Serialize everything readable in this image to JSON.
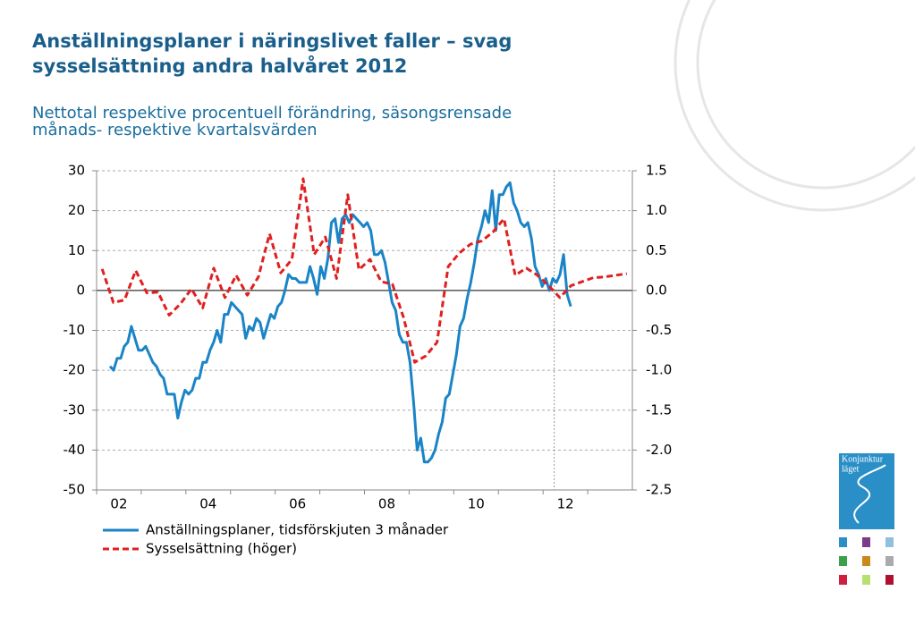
{
  "chart_data": {
    "type": "line",
    "title": [
      "Anställningsplaner i näringslivet faller – svag",
      "sysselsättning andra halvåret 2012"
    ],
    "subtitle": [
      "Nettotal respektive procentuell förändring, säsongsrensade",
      "månads- respektive kvartalsvärden"
    ],
    "xlim": [
      2002,
      2014
    ],
    "xticks": [
      {
        "value": 2002,
        "label": "02"
      },
      {
        "value": 2004,
        "label": "04"
      },
      {
        "value": 2006,
        "label": "06"
      },
      {
        "value": 2008,
        "label": "08"
      },
      {
        "value": 2010,
        "label": "10"
      },
      {
        "value": 2012,
        "label": "12"
      }
    ],
    "xminor": [
      2003,
      2005,
      2007,
      2009,
      2011,
      2013
    ],
    "vline": 2012.25,
    "ylim": [
      -50,
      30
    ],
    "yticks": [
      -50,
      -40,
      -30,
      -20,
      -10,
      0,
      10,
      20,
      30
    ],
    "y2lim": [
      -2.5,
      1.5
    ],
    "y2ticks": [
      -2.5,
      {
        "value": -2,
        "label": "-2.0"
      },
      -1.5,
      {
        "value": -1,
        "label": "-1.0"
      },
      -0.5,
      {
        "value": 0,
        "label": "0.0"
      },
      0.5,
      {
        "value": 1,
        "label": "1.0"
      },
      1.5
    ],
    "grid": true,
    "legend": "bottom-left",
    "series": [
      {
        "name": "Anställningsplaner, tidsförskjuten 3 månader",
        "color": "#1a84c7",
        "dash": false,
        "x": [
          2002.3,
          2002.38,
          2002.46,
          2002.54,
          2002.62,
          2002.7,
          2002.78,
          2002.86,
          2002.94,
          2003.02,
          2003.1,
          2003.18,
          2003.26,
          2003.34,
          2003.42,
          2003.5,
          2003.58,
          2003.66,
          2003.74,
          2003.82,
          2003.9,
          2003.98,
          2004.06,
          2004.14,
          2004.22,
          2004.3,
          2004.38,
          2004.46,
          2004.54,
          2004.62,
          2004.7,
          2004.78,
          2004.86,
          2004.94,
          2005.02,
          2005.1,
          2005.18,
          2005.26,
          2005.34,
          2005.42,
          2005.5,
          2005.58,
          2005.66,
          2005.74,
          2005.82,
          2005.9,
          2005.98,
          2006.06,
          2006.14,
          2006.22,
          2006.3,
          2006.38,
          2006.46,
          2006.54,
          2006.62,
          2006.7,
          2006.78,
          2006.86,
          2006.94,
          2007.02,
          2007.1,
          2007.18,
          2007.26,
          2007.34,
          2007.42,
          2007.5,
          2007.58,
          2007.66,
          2007.74,
          2007.82,
          2007.9,
          2007.98,
          2008.06,
          2008.14,
          2008.22,
          2008.3,
          2008.38,
          2008.46,
          2008.54,
          2008.62,
          2008.7,
          2008.78,
          2008.86,
          2008.94,
          2009.02,
          2009.1,
          2009.18,
          2009.26,
          2009.34,
          2009.42,
          2009.5,
          2009.58,
          2009.66,
          2009.74,
          2009.82,
          2009.9,
          2009.98,
          2010.06,
          2010.14,
          2010.22,
          2010.3,
          2010.38,
          2010.46,
          2010.54,
          2010.62,
          2010.7,
          2010.78,
          2010.86,
          2010.94,
          2011.02,
          2011.1,
          2011.18,
          2011.26,
          2011.34,
          2011.42,
          2011.5,
          2011.58,
          2011.66,
          2011.74,
          2011.82,
          2011.9,
          2011.98,
          2012.06,
          2012.14,
          2012.22,
          2012.3,
          2012.38,
          2012.46,
          2012.54,
          2012.62
        ],
        "values": [
          -19,
          -20,
          -17,
          -17,
          -14,
          -13,
          -9,
          -12,
          -15,
          -15,
          -14,
          -16,
          -18,
          -19,
          -21,
          -22,
          -26,
          -26,
          -26,
          -32,
          -28,
          -25,
          -26,
          -25,
          -22,
          -22,
          -18,
          -18,
          -15,
          -13,
          -10,
          -13,
          -6,
          -6,
          -3,
          -4,
          -5,
          -6,
          -12,
          -9,
          -10,
          -7,
          -8,
          -12,
          -9,
          -6,
          -7,
          -4,
          -3,
          0,
          4,
          3,
          3,
          2,
          2,
          2,
          6,
          3,
          -1,
          6,
          3,
          8,
          17,
          18,
          12,
          18,
          19,
          17,
          19,
          18,
          17,
          16,
          17,
          15,
          9,
          9,
          10,
          7,
          2,
          -3,
          -5,
          -11,
          -13,
          -13,
          -18,
          -28,
          -40,
          -37,
          -43,
          -43,
          -42,
          -40,
          -36,
          -33,
          -27,
          -26,
          -21,
          -16,
          -9,
          -7,
          -2,
          2,
          7,
          13,
          16,
          20,
          17,
          25,
          15,
          24,
          24,
          26,
          27,
          22,
          20,
          17,
          16,
          17,
          13,
          6,
          4,
          1,
          3,
          0,
          3,
          2,
          4,
          9,
          -1,
          -4
        ]
      },
      {
        "name": "Sysselsättning (höger)",
        "color": "#e02020",
        "dash": true,
        "axis": "y2",
        "x": [
          2002.125,
          2002.375,
          2002.625,
          2002.875,
          2003.125,
          2003.375,
          2003.625,
          2003.875,
          2004.125,
          2004.375,
          2004.625,
          2004.875,
          2005.125,
          2005.375,
          2005.625,
          2005.875,
          2006.125,
          2006.375,
          2006.625,
          2006.875,
          2007.125,
          2007.375,
          2007.625,
          2007.875,
          2008.125,
          2008.375,
          2008.625,
          2008.875,
          2009.125,
          2009.375,
          2009.625,
          2009.875,
          2010.125,
          2010.375,
          2010.625,
          2010.875,
          2011.125,
          2011.375,
          2011.625,
          2011.875,
          2012.125,
          2012.375,
          2012.625,
          2012.875,
          2013.125,
          2013.375,
          2013.625,
          2013.875
        ],
        "values": [
          0.27,
          -0.15,
          -0.12,
          0.25,
          -0.03,
          -0.02,
          -0.31,
          -0.17,
          0.02,
          -0.22,
          0.28,
          -0.09,
          0.19,
          -0.06,
          0.17,
          0.71,
          0.22,
          0.39,
          1.4,
          0.45,
          0.67,
          0.15,
          1.2,
          0.26,
          0.39,
          0.11,
          0.08,
          -0.34,
          -0.9,
          -0.82,
          -0.65,
          0.3,
          0.47,
          0.58,
          0.62,
          0.73,
          0.9,
          0.19,
          0.28,
          0.19,
          0.06,
          -0.09,
          0.06,
          0.11,
          0.16,
          0.17,
          0.19,
          0.21
        ]
      }
    ]
  },
  "logo": {
    "text": [
      "Konjunktur",
      "läget"
    ]
  }
}
